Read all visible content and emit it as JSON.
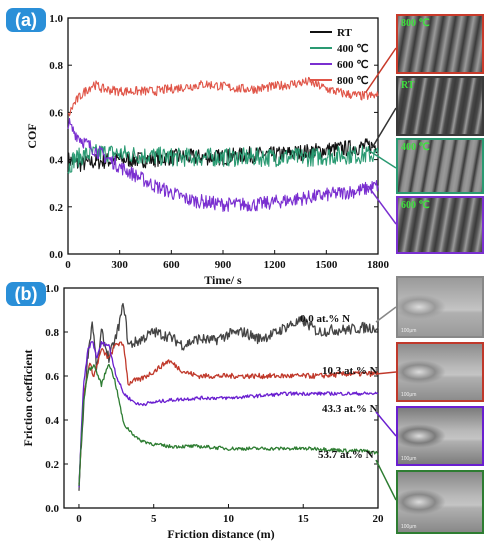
{
  "panels": {
    "a": {
      "label": "(a)"
    },
    "b": {
      "label": "(b)"
    }
  },
  "chart_data": [
    {
      "type": "line",
      "xlabel": "Time/ s",
      "ylabel": "COF",
      "xlim": [
        0,
        1800
      ],
      "ylim": [
        0,
        1.0
      ],
      "xticks": [
        "0",
        "300",
        "600",
        "900",
        "1200",
        "1500",
        "1800"
      ],
      "yticks": [
        "0.0",
        "0.2",
        "0.4",
        "0.6",
        "0.8",
        "1.0"
      ],
      "legend_position": "top-right",
      "series": [
        {
          "name": "RT",
          "color": "#111111",
          "noise": 0.035,
          "x": [
            0,
            60,
            150,
            300,
            450,
            600,
            750,
            900,
            1050,
            1200,
            1350,
            1500,
            1650,
            1800
          ],
          "y": [
            0.4,
            0.38,
            0.39,
            0.4,
            0.4,
            0.41,
            0.41,
            0.41,
            0.42,
            0.42,
            0.43,
            0.44,
            0.45,
            0.46
          ]
        },
        {
          "name": "400 ℃",
          "color": "#2a9a72",
          "noise": 0.04,
          "x": [
            0,
            30,
            100,
            200,
            400,
            600,
            800,
            1000,
            1200,
            1400,
            1600,
            1800
          ],
          "y": [
            0.36,
            0.4,
            0.42,
            0.43,
            0.42,
            0.41,
            0.41,
            0.41,
            0.41,
            0.41,
            0.42,
            0.42
          ]
        },
        {
          "name": "600 ℃",
          "color": "#7a2fd0",
          "noise": 0.03,
          "x": [
            0,
            20,
            100,
            200,
            300,
            400,
            500,
            600,
            700,
            800,
            900,
            1000,
            1100,
            1200,
            1300,
            1400,
            1500,
            1600,
            1700,
            1800
          ],
          "y": [
            0.56,
            0.53,
            0.47,
            0.42,
            0.37,
            0.33,
            0.29,
            0.26,
            0.23,
            0.22,
            0.21,
            0.21,
            0.21,
            0.22,
            0.23,
            0.24,
            0.25,
            0.26,
            0.27,
            0.29
          ]
        },
        {
          "name": "800 ℃",
          "color": "#e05548",
          "noise": 0.02,
          "x": [
            0,
            30,
            60,
            100,
            150,
            200,
            300,
            400,
            500,
            600,
            700,
            800,
            900,
            1000,
            1100,
            1200,
            1300,
            1400,
            1500,
            1600,
            1700,
            1800
          ],
          "y": [
            0.58,
            0.63,
            0.66,
            0.69,
            0.72,
            0.7,
            0.69,
            0.69,
            0.69,
            0.7,
            0.71,
            0.72,
            0.71,
            0.7,
            0.7,
            0.71,
            0.72,
            0.73,
            0.7,
            0.68,
            0.67,
            0.67
          ]
        }
      ]
    },
    {
      "type": "line",
      "xlabel": "Friction distance (m)",
      "ylabel": "Friction coefficient",
      "xlim": [
        -1,
        20
      ],
      "ylim": [
        0,
        1.0
      ],
      "xticks": [
        "0",
        "5",
        "10",
        "15",
        "20"
      ],
      "yticks": [
        "0.0",
        "0.2",
        "0.4",
        "0.6",
        "0.8",
        "1.0"
      ],
      "series": [
        {
          "name": "0.0 at.% N",
          "color": "#444444",
          "noise": 0.025,
          "x": [
            0,
            0.3,
            0.6,
            0.9,
            1.2,
            1.5,
            2.0,
            2.5,
            3.0,
            3.3,
            4,
            5,
            6,
            7,
            8,
            9,
            10,
            11,
            12,
            13,
            14,
            15,
            16,
            17,
            18,
            19,
            20
          ],
          "y": [
            0.1,
            0.45,
            0.7,
            0.85,
            0.62,
            0.8,
            0.68,
            0.78,
            0.93,
            0.74,
            0.76,
            0.8,
            0.78,
            0.74,
            0.77,
            0.76,
            0.79,
            0.8,
            0.77,
            0.79,
            0.83,
            0.85,
            0.8,
            0.81,
            0.81,
            0.82,
            0.82
          ]
        },
        {
          "name": "10.3 at.% N",
          "color": "#c0392b",
          "noise": 0.012,
          "x": [
            0,
            0.3,
            0.7,
            1.0,
            1.5,
            2.0,
            2.5,
            3.0,
            3.3,
            3.6,
            4,
            5,
            6,
            7,
            8,
            10,
            12,
            14,
            16,
            18,
            20
          ],
          "y": [
            0.1,
            0.5,
            0.66,
            0.6,
            0.72,
            0.68,
            0.75,
            0.74,
            0.56,
            0.58,
            0.58,
            0.62,
            0.67,
            0.62,
            0.6,
            0.6,
            0.6,
            0.6,
            0.6,
            0.61,
            0.61
          ]
        },
        {
          "name": "43.3 at.% N",
          "color": "#6a1fd0",
          "noise": 0.008,
          "x": [
            0,
            0.3,
            0.6,
            0.9,
            1.2,
            1.5,
            2.0,
            2.5,
            3.0,
            3.5,
            4.0,
            5,
            6,
            8,
            10,
            12,
            14,
            16,
            18,
            20
          ],
          "y": [
            0.1,
            0.55,
            0.72,
            0.76,
            0.68,
            0.75,
            0.74,
            0.6,
            0.52,
            0.49,
            0.47,
            0.48,
            0.49,
            0.5,
            0.5,
            0.51,
            0.52,
            0.52,
            0.52,
            0.52
          ]
        },
        {
          "name": "53.7 at.% N",
          "color": "#2e7d32",
          "noise": 0.008,
          "x": [
            0,
            0.3,
            0.6,
            1.0,
            1.5,
            2.0,
            2.4,
            3.0,
            4,
            5,
            6,
            8,
            10,
            12,
            14,
            16,
            18,
            19,
            20
          ],
          "y": [
            0.1,
            0.48,
            0.62,
            0.65,
            0.56,
            0.66,
            0.58,
            0.38,
            0.31,
            0.29,
            0.28,
            0.28,
            0.27,
            0.27,
            0.27,
            0.27,
            0.26,
            0.26,
            0.25
          ]
        }
      ]
    }
  ],
  "sem_images": {
    "a": [
      {
        "tag": "800 ℃",
        "tag_color": "#3fe03f",
        "border": "#c83a2a",
        "tone": "#6a6a6a",
        "marks": "G  P"
      },
      {
        "tag": "RT",
        "tag_color": "#3fe03f",
        "border": "#3a3a3a",
        "tone": "#4a4a4a",
        "marks": "P"
      },
      {
        "tag": "400 ℃",
        "tag_color": "#3fe03f",
        "border": "#2a9a72",
        "tone": "#8a8a8a",
        "marks": "P"
      },
      {
        "tag": "600 ℃",
        "tag_color": "#3fe03f",
        "border": "#7a2fd0",
        "tone": "#5c5c5c",
        "marks": "P"
      }
    ],
    "b": [
      {
        "border": "#888888",
        "tone": "#9a9a9a",
        "scale": "100μm"
      },
      {
        "border": "#c0392b",
        "tone": "#8c8c8c",
        "scale": "100μm"
      },
      {
        "border": "#6a1fd0",
        "tone": "#7c7c7c",
        "scale": "100μm"
      },
      {
        "border": "#2e7d32",
        "tone": "#888888",
        "scale": "100μm"
      }
    ]
  }
}
